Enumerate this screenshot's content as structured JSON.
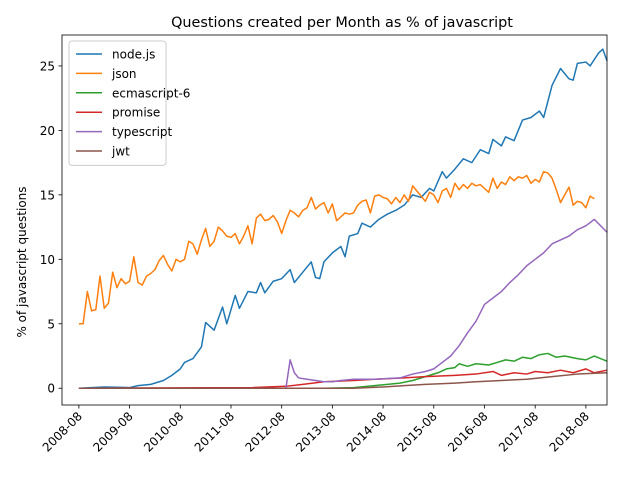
{
  "chart_data": {
    "type": "line",
    "title": "Questions created per Month as % of javascript",
    "xlabel": "",
    "ylabel": "% of javascript questions",
    "x_range": [
      "2008-04",
      "2019-01"
    ],
    "ylim": [
      -1.3,
      27.4
    ],
    "x_ticks": [
      "2008-08",
      "2009-08",
      "2010-08",
      "2011-08",
      "2012-08",
      "2013-08",
      "2014-08",
      "2015-08",
      "2016-08",
      "2017-08",
      "2018-08"
    ],
    "y_ticks": [
      0,
      5,
      10,
      15,
      20,
      25
    ],
    "grid": false,
    "legend_position": "top-left",
    "series": [
      {
        "name": "node.js",
        "color": "#1f77b4",
        "points": [
          [
            "2008-08",
            0.0
          ],
          [
            "2009-02",
            0.1
          ],
          [
            "2009-08",
            0.05
          ],
          [
            "2009-10",
            0.2
          ],
          [
            "2010-01",
            0.3
          ],
          [
            "2010-04",
            0.6
          ],
          [
            "2010-06",
            1.0
          ],
          [
            "2010-08",
            1.5
          ],
          [
            "2010-09",
            2.0
          ],
          [
            "2010-11",
            2.3
          ],
          [
            "2011-01",
            3.2
          ],
          [
            "2011-02",
            5.1
          ],
          [
            "2011-04",
            4.5
          ],
          [
            "2011-06",
            6.3
          ],
          [
            "2011-07",
            5.0
          ],
          [
            "2011-09",
            7.2
          ],
          [
            "2011-10",
            6.2
          ],
          [
            "2011-12",
            7.5
          ],
          [
            "2012-02",
            7.4
          ],
          [
            "2012-03",
            8.2
          ],
          [
            "2012-04",
            7.4
          ],
          [
            "2012-06",
            8.3
          ],
          [
            "2012-08",
            8.5
          ],
          [
            "2012-10",
            9.2
          ],
          [
            "2012-11",
            8.2
          ],
          [
            "2013-01",
            9.0
          ],
          [
            "2013-03",
            9.8
          ],
          [
            "2013-04",
            8.6
          ],
          [
            "2013-05",
            8.5
          ],
          [
            "2013-06",
            9.8
          ],
          [
            "2013-08",
            10.5
          ],
          [
            "2013-10",
            11.0
          ],
          [
            "2013-11",
            10.2
          ],
          [
            "2013-12",
            11.8
          ],
          [
            "2014-02",
            12.0
          ],
          [
            "2014-03",
            12.8
          ],
          [
            "2014-05",
            12.5
          ],
          [
            "2014-07",
            13.1
          ],
          [
            "2014-09",
            13.5
          ],
          [
            "2014-11",
            13.8
          ],
          [
            "2015-01",
            14.2
          ],
          [
            "2015-03",
            15.0
          ],
          [
            "2015-05",
            14.8
          ],
          [
            "2015-07",
            15.5
          ],
          [
            "2015-08",
            15.3
          ],
          [
            "2015-10",
            16.8
          ],
          [
            "2015-11",
            16.3
          ],
          [
            "2016-01",
            17.0
          ],
          [
            "2016-03",
            17.8
          ],
          [
            "2016-05",
            17.5
          ],
          [
            "2016-07",
            18.5
          ],
          [
            "2016-09",
            18.2
          ],
          [
            "2016-10",
            19.3
          ],
          [
            "2016-12",
            18.8
          ],
          [
            "2017-01",
            19.5
          ],
          [
            "2017-03",
            19.2
          ],
          [
            "2017-05",
            20.8
          ],
          [
            "2017-07",
            21.0
          ],
          [
            "2017-09",
            21.5
          ],
          [
            "2017-10",
            21.0
          ],
          [
            "2017-12",
            23.5
          ],
          [
            "2018-02",
            24.8
          ],
          [
            "2018-04",
            24.0
          ],
          [
            "2018-05",
            23.9
          ],
          [
            "2018-06",
            25.2
          ],
          [
            "2018-08",
            25.3
          ],
          [
            "2018-09",
            25.0
          ],
          [
            "2018-11",
            26.0
          ],
          [
            "2018-12",
            26.3
          ],
          [
            "2019-01",
            25.4
          ]
        ]
      },
      {
        "name": "json",
        "color": "#ff7f0e",
        "points": [
          [
            "2008-08",
            5.0
          ],
          [
            "2008-09",
            5.0
          ],
          [
            "2008-10",
            7.5
          ],
          [
            "2008-11",
            6.0
          ],
          [
            "2008-12",
            6.1
          ],
          [
            "2009-01",
            8.7
          ],
          [
            "2009-02",
            6.2
          ],
          [
            "2009-03",
            6.6
          ],
          [
            "2009-04",
            9.0
          ],
          [
            "2009-05",
            7.8
          ],
          [
            "2009-06",
            8.5
          ],
          [
            "2009-07",
            8.1
          ],
          [
            "2009-08",
            8.3
          ],
          [
            "2009-09",
            10.2
          ],
          [
            "2009-10",
            8.2
          ],
          [
            "2009-11",
            8.0
          ],
          [
            "2009-12",
            8.7
          ],
          [
            "2010-01",
            8.9
          ],
          [
            "2010-02",
            9.2
          ],
          [
            "2010-03",
            9.9
          ],
          [
            "2010-04",
            10.3
          ],
          [
            "2010-05",
            9.6
          ],
          [
            "2010-06",
            9.1
          ],
          [
            "2010-07",
            10.0
          ],
          [
            "2010-08",
            9.8
          ],
          [
            "2010-09",
            10.0
          ],
          [
            "2010-10",
            11.4
          ],
          [
            "2010-11",
            11.2
          ],
          [
            "2010-12",
            10.4
          ],
          [
            "2011-01",
            11.5
          ],
          [
            "2011-02",
            12.4
          ],
          [
            "2011-03",
            11.0
          ],
          [
            "2011-04",
            11.4
          ],
          [
            "2011-05",
            12.5
          ],
          [
            "2011-06",
            12.2
          ],
          [
            "2011-07",
            11.8
          ],
          [
            "2011-08",
            11.7
          ],
          [
            "2011-09",
            12.0
          ],
          [
            "2011-10",
            11.2
          ],
          [
            "2011-11",
            11.8
          ],
          [
            "2011-12",
            12.6
          ],
          [
            "2012-01",
            11.2
          ],
          [
            "2012-02",
            13.2
          ],
          [
            "2012-03",
            13.5
          ],
          [
            "2012-04",
            13.0
          ],
          [
            "2012-05",
            13.1
          ],
          [
            "2012-06",
            13.4
          ],
          [
            "2012-07",
            12.9
          ],
          [
            "2012-08",
            12.0
          ],
          [
            "2012-09",
            13.0
          ],
          [
            "2012-10",
            13.8
          ],
          [
            "2012-11",
            13.6
          ],
          [
            "2012-12",
            13.3
          ],
          [
            "2013-01",
            13.8
          ],
          [
            "2013-02",
            14.0
          ],
          [
            "2013-03",
            14.8
          ],
          [
            "2013-04",
            13.9
          ],
          [
            "2013-05",
            14.2
          ],
          [
            "2013-06",
            14.4
          ],
          [
            "2013-07",
            13.6
          ],
          [
            "2013-08",
            14.3
          ],
          [
            "2013-09",
            13.0
          ],
          [
            "2013-10",
            13.3
          ],
          [
            "2013-11",
            13.6
          ],
          [
            "2013-12",
            13.5
          ],
          [
            "2014-01",
            13.6
          ],
          [
            "2014-02",
            14.2
          ],
          [
            "2014-03",
            14.5
          ],
          [
            "2014-04",
            14.6
          ],
          [
            "2014-05",
            13.6
          ],
          [
            "2014-06",
            14.9
          ],
          [
            "2014-07",
            15.0
          ],
          [
            "2014-08",
            14.8
          ],
          [
            "2014-09",
            14.7
          ],
          [
            "2014-10",
            14.3
          ],
          [
            "2014-11",
            14.8
          ],
          [
            "2014-12",
            14.4
          ],
          [
            "2015-01",
            15.0
          ],
          [
            "2015-02",
            14.5
          ],
          [
            "2015-03",
            15.7
          ],
          [
            "2015-04",
            15.3
          ],
          [
            "2015-05",
            14.9
          ],
          [
            "2015-06",
            14.5
          ],
          [
            "2015-07",
            15.2
          ],
          [
            "2015-08",
            15.0
          ],
          [
            "2015-09",
            14.4
          ],
          [
            "2015-10",
            15.3
          ],
          [
            "2015-11",
            15.5
          ],
          [
            "2015-12",
            14.8
          ],
          [
            "2016-01",
            15.9
          ],
          [
            "2016-02",
            15.4
          ],
          [
            "2016-03",
            15.8
          ],
          [
            "2016-04",
            15.5
          ],
          [
            "2016-05",
            15.9
          ],
          [
            "2016-06",
            15.7
          ],
          [
            "2016-07",
            15.8
          ],
          [
            "2016-08",
            15.5
          ],
          [
            "2016-09",
            15.2
          ],
          [
            "2016-10",
            16.3
          ],
          [
            "2016-11",
            15.5
          ],
          [
            "2016-12",
            16.0
          ],
          [
            "2017-01",
            15.8
          ],
          [
            "2017-02",
            16.4
          ],
          [
            "2017-03",
            16.1
          ],
          [
            "2017-04",
            16.4
          ],
          [
            "2017-05",
            16.3
          ],
          [
            "2017-06",
            16.5
          ],
          [
            "2017-07",
            15.9
          ],
          [
            "2017-08",
            16.2
          ],
          [
            "2017-09",
            16.0
          ],
          [
            "2017-10",
            16.8
          ],
          [
            "2017-11",
            16.7
          ],
          [
            "2017-12",
            16.3
          ],
          [
            "2018-01",
            15.4
          ],
          [
            "2018-02",
            14.4
          ],
          [
            "2018-03",
            15.0
          ],
          [
            "2018-04",
            15.6
          ],
          [
            "2018-05",
            14.2
          ],
          [
            "2018-06",
            14.5
          ],
          [
            "2018-07",
            14.4
          ],
          [
            "2018-08",
            14.0
          ],
          [
            "2018-09",
            14.9
          ],
          [
            "2018-10",
            14.7
          ]
        ]
      },
      {
        "name": "ecmascript-6",
        "color": "#2ca02c",
        "points": [
          [
            "2008-08",
            0.0
          ],
          [
            "2013-06",
            0.0
          ],
          [
            "2014-01",
            0.05
          ],
          [
            "2014-06",
            0.2
          ],
          [
            "2014-12",
            0.4
          ],
          [
            "2015-03",
            0.6
          ],
          [
            "2015-06",
            0.9
          ],
          [
            "2015-09",
            1.2
          ],
          [
            "2015-11",
            1.5
          ],
          [
            "2016-01",
            1.6
          ],
          [
            "2016-02",
            1.9
          ],
          [
            "2016-04",
            1.7
          ],
          [
            "2016-06",
            1.9
          ],
          [
            "2016-09",
            1.8
          ],
          [
            "2016-11",
            2.0
          ],
          [
            "2017-01",
            2.2
          ],
          [
            "2017-03",
            2.1
          ],
          [
            "2017-05",
            2.4
          ],
          [
            "2017-07",
            2.3
          ],
          [
            "2017-09",
            2.6
          ],
          [
            "2017-11",
            2.7
          ],
          [
            "2018-01",
            2.4
          ],
          [
            "2018-03",
            2.5
          ],
          [
            "2018-06",
            2.3
          ],
          [
            "2018-08",
            2.2
          ],
          [
            "2018-10",
            2.5
          ],
          [
            "2019-01",
            2.1
          ]
        ]
      },
      {
        "name": "promise",
        "color": "#d62728",
        "points": [
          [
            "2008-08",
            0.0
          ],
          [
            "2012-01",
            0.05
          ],
          [
            "2012-09",
            0.15
          ],
          [
            "2013-01",
            0.3
          ],
          [
            "2013-06",
            0.5
          ],
          [
            "2014-01",
            0.6
          ],
          [
            "2014-06",
            0.7
          ],
          [
            "2015-01",
            0.8
          ],
          [
            "2015-06",
            0.9
          ],
          [
            "2016-01",
            1.0
          ],
          [
            "2016-06",
            1.1
          ],
          [
            "2016-10",
            1.3
          ],
          [
            "2016-12",
            1.0
          ],
          [
            "2017-03",
            1.2
          ],
          [
            "2017-06",
            1.1
          ],
          [
            "2017-08",
            1.3
          ],
          [
            "2017-11",
            1.2
          ],
          [
            "2018-02",
            1.4
          ],
          [
            "2018-05",
            1.2
          ],
          [
            "2018-08",
            1.5
          ],
          [
            "2018-10",
            1.2
          ],
          [
            "2019-01",
            1.4
          ]
        ]
      },
      {
        "name": "typescript",
        "color": "#9467bd",
        "points": [
          [
            "2008-08",
            0.0
          ],
          [
            "2012-09",
            0.0
          ],
          [
            "2012-10",
            2.2
          ],
          [
            "2012-11",
            1.2
          ],
          [
            "2012-12",
            0.8
          ],
          [
            "2013-02",
            0.7
          ],
          [
            "2013-04",
            0.6
          ],
          [
            "2013-06",
            0.5
          ],
          [
            "2013-08",
            0.5
          ],
          [
            "2013-10",
            0.6
          ],
          [
            "2014-01",
            0.7
          ],
          [
            "2014-06",
            0.7
          ],
          [
            "2014-12",
            0.8
          ],
          [
            "2015-03",
            1.1
          ],
          [
            "2015-06",
            1.3
          ],
          [
            "2015-08",
            1.5
          ],
          [
            "2015-10",
            2.0
          ],
          [
            "2015-12",
            2.5
          ],
          [
            "2016-02",
            3.3
          ],
          [
            "2016-04",
            4.3
          ],
          [
            "2016-06",
            5.2
          ],
          [
            "2016-08",
            6.5
          ],
          [
            "2016-10",
            7.0
          ],
          [
            "2016-12",
            7.5
          ],
          [
            "2017-02",
            8.2
          ],
          [
            "2017-04",
            8.8
          ],
          [
            "2017-06",
            9.5
          ],
          [
            "2017-08",
            10.0
          ],
          [
            "2017-10",
            10.5
          ],
          [
            "2017-12",
            11.2
          ],
          [
            "2018-02",
            11.5
          ],
          [
            "2018-04",
            11.8
          ],
          [
            "2018-06",
            12.3
          ],
          [
            "2018-08",
            12.6
          ],
          [
            "2018-10",
            13.1
          ],
          [
            "2019-01",
            12.1
          ]
        ]
      },
      {
        "name": "jwt",
        "color": "#8c564b",
        "points": [
          [
            "2008-08",
            0.0
          ],
          [
            "2014-01",
            0.0
          ],
          [
            "2014-08",
            0.1
          ],
          [
            "2015-01",
            0.2
          ],
          [
            "2015-06",
            0.3
          ],
          [
            "2016-01",
            0.4
          ],
          [
            "2016-06",
            0.5
          ],
          [
            "2016-12",
            0.6
          ],
          [
            "2017-06",
            0.7
          ],
          [
            "2017-12",
            0.9
          ],
          [
            "2018-06",
            1.1
          ],
          [
            "2019-01",
            1.2
          ]
        ]
      }
    ]
  }
}
